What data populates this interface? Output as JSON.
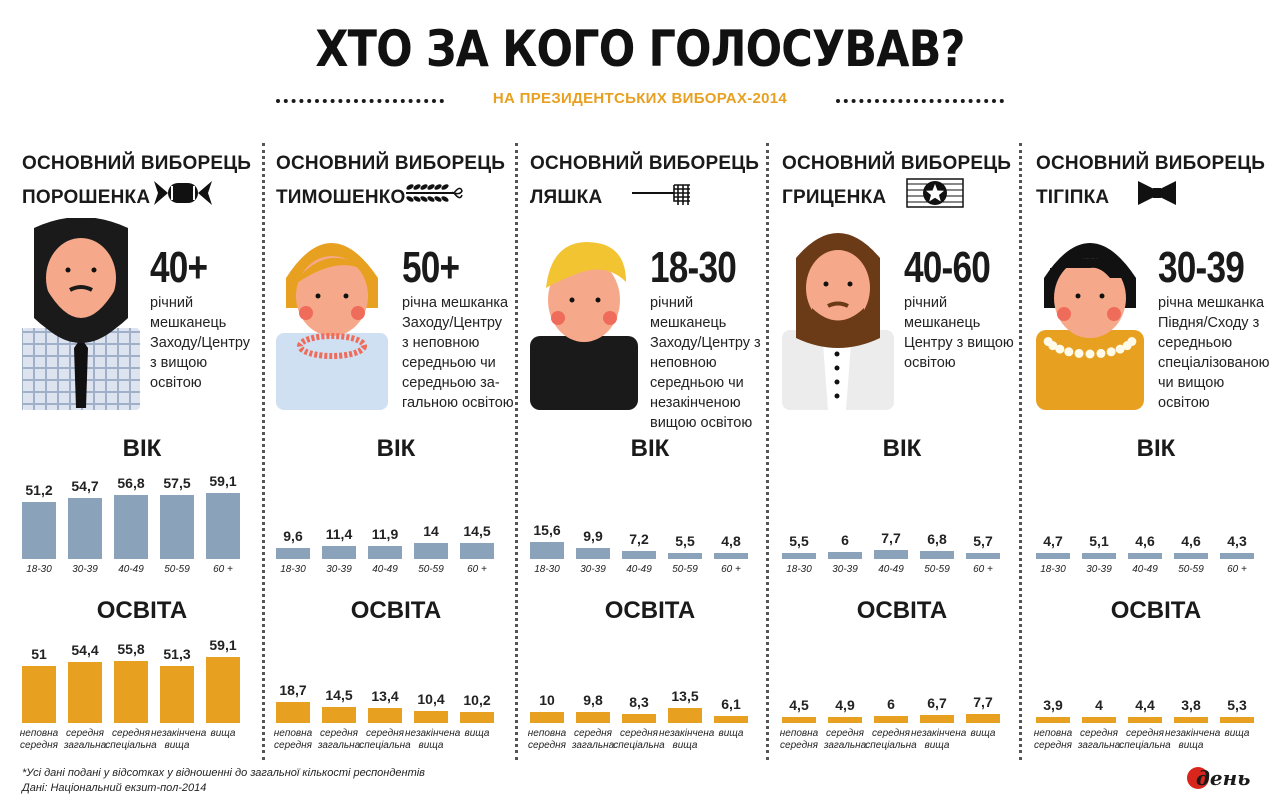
{
  "title": "ХТО ЗА КОГО ГОЛОСУВАВ?",
  "subtitle": "НА ПРЕЗИДЕНТСЬКИХ ВИБОРАХ-2014",
  "colors": {
    "age_bar": "#8aa2ba",
    "edu_bar": "#e8a020",
    "accent": "#e8a020",
    "skin": "#f6a98a",
    "cheek": "#ef6b5a"
  },
  "age_categories": [
    "18-30",
    "30-39",
    "40-49",
    "50-59",
    "60 +"
  ],
  "edu_categories": [
    [
      "неповна",
      "середня"
    ],
    [
      "середня",
      "загальна"
    ],
    [
      "середня",
      "спеціальна"
    ],
    [
      "незакінчена",
      "вища"
    ],
    [
      "вища"
    ]
  ],
  "sections": {
    "age": "ВІК",
    "education": "ОСВІТА"
  },
  "candidates": [
    {
      "head_line1": "ОСНОВНИЙ ВИБОРЕЦЬ",
      "head_line2": "ПОРОШЕНКА",
      "icon": "candy-icon",
      "age_range": "40+",
      "description": [
        "річний",
        "мешканець",
        "Заходу/Центру",
        "з вищою",
        "освітою"
      ]
    },
    {
      "head_line1": "ОСНОВНИЙ ВИБОРЕЦЬ",
      "head_line2": "ТИМОШЕНКО",
      "icon": "wheat-icon",
      "age_range": "50+",
      "description": [
        "річна мешканка",
        "Заходу/Центру",
        "з неповною",
        "середньою чи",
        "середньою за-",
        "гальною освітою"
      ]
    },
    {
      "head_line1": "ОСНОВНИЙ ВИБОРЕЦЬ",
      "head_line2": "ЛЯШКА",
      "icon": "pitchfork-icon",
      "age_range": "18-30",
      "description": [
        "річний мешканець",
        "Заходу/Центру з",
        "неповною",
        "середньою чи",
        "незакінченою",
        "вищою освітою"
      ]
    },
    {
      "head_line1": "ОСНОВНИЙ ВИБОРЕЦЬ",
      "head_line2": "ГРИЦЕНКА",
      "icon": "star-badge-icon",
      "age_range": "40-60",
      "description": [
        "річний мешканець",
        "Центру з вищою",
        "освітою"
      ]
    },
    {
      "head_line1": "ОСНОВНИЙ ВИБОРЕЦЬ",
      "head_line2": "ТІГІПКА",
      "icon": "bowtie-icon",
      "age_range": "30-39",
      "description": [
        "річна мешканка",
        "Півдня/Сходу з",
        "середньою",
        "спеціалізованою",
        "чи вищою освітою"
      ]
    }
  ],
  "chart_data": [
    {
      "type": "bar",
      "title": "ВІК",
      "categories": [
        "18-30",
        "30-39",
        "40-49",
        "50-59",
        "60 +"
      ],
      "values": [
        51.2,
        54.7,
        56.8,
        57.5,
        59.1
      ],
      "labels": [
        "51,2",
        "54,7",
        "56,8",
        "57,5",
        "59,1"
      ]
    },
    {
      "type": "bar",
      "title": "ОСВІТА",
      "categories": [
        "неповна середня",
        "середня загальна",
        "середня спеціальна",
        "незакінчена вища",
        "вища"
      ],
      "values": [
        51,
        54.4,
        55.8,
        51.3,
        59.1
      ],
      "labels": [
        "51",
        "54,4",
        "55,8",
        "51,3",
        "59,1"
      ]
    },
    {
      "type": "bar",
      "title": "ВІК",
      "categories": [
        "18-30",
        "30-39",
        "40-49",
        "50-59",
        "60 +"
      ],
      "values": [
        9.6,
        11.4,
        11.9,
        14,
        14.5
      ],
      "labels": [
        "9,6",
        "11,4",
        "11,9",
        "14",
        "14,5"
      ]
    },
    {
      "type": "bar",
      "title": "ОСВІТА",
      "categories": [
        "неповна середня",
        "середня загальна",
        "середня спеціальна",
        "незакінчена вища",
        "вища"
      ],
      "values": [
        18.7,
        14.5,
        13.4,
        10.4,
        10.2
      ],
      "labels": [
        "18,7",
        "14,5",
        "13,4",
        "10,4",
        "10,2"
      ]
    },
    {
      "type": "bar",
      "title": "ВІК",
      "categories": [
        "18-30",
        "30-39",
        "40-49",
        "50-59",
        "60 +"
      ],
      "values": [
        15.6,
        9.9,
        7.2,
        5.5,
        4.8
      ],
      "labels": [
        "15,6",
        "9,9",
        "7,2",
        "5,5",
        "4,8"
      ]
    },
    {
      "type": "bar",
      "title": "ОСВІТА",
      "categories": [
        "неповна середня",
        "середня загальна",
        "середня спеціальна",
        "незакінчена вища",
        "вища"
      ],
      "values": [
        10,
        9.8,
        8.3,
        13.5,
        6.1
      ],
      "labels": [
        "10",
        "9,8",
        "8,3",
        "13,5",
        "6,1"
      ]
    },
    {
      "type": "bar",
      "title": "ВІК",
      "categories": [
        "18-30",
        "30-39",
        "40-49",
        "50-59",
        "60 +"
      ],
      "values": [
        5.5,
        6,
        7.7,
        6.8,
        5.7
      ],
      "labels": [
        "5,5",
        "6",
        "7,7",
        "6,8",
        "5,7"
      ]
    },
    {
      "type": "bar",
      "title": "ОСВІТА",
      "categories": [
        "неповна середня",
        "середня загальна",
        "середня спеціальна",
        "незакінчена вища",
        "вища"
      ],
      "values": [
        4.5,
        4.9,
        6,
        6.7,
        7.7
      ],
      "labels": [
        "4,5",
        "4,9",
        "6",
        "6,7",
        "7,7"
      ]
    },
    {
      "type": "bar",
      "title": "ВІК",
      "categories": [
        "18-30",
        "30-39",
        "40-49",
        "50-59",
        "60 +"
      ],
      "values": [
        4.7,
        5.1,
        4.6,
        4.6,
        4.3
      ],
      "labels": [
        "4,7",
        "5,1",
        "4,6",
        "4,6",
        "4,3"
      ]
    },
    {
      "type": "bar",
      "title": "ОСВІТА",
      "categories": [
        "неповна середня",
        "середня загальна",
        "середня спеціальна",
        "незакінчена вища",
        "вища"
      ],
      "values": [
        3.9,
        4,
        4.4,
        3.8,
        5.3
      ],
      "labels": [
        "3,9",
        "4",
        "4,4",
        "3,8",
        "5,3"
      ]
    }
  ],
  "footnote_line1": "*Усі дані подані у відсотках у відношенні до загальної кількості респондентів",
  "footnote_line2": "Дані: Національний екзит-пол-2014",
  "logo_text": "день"
}
